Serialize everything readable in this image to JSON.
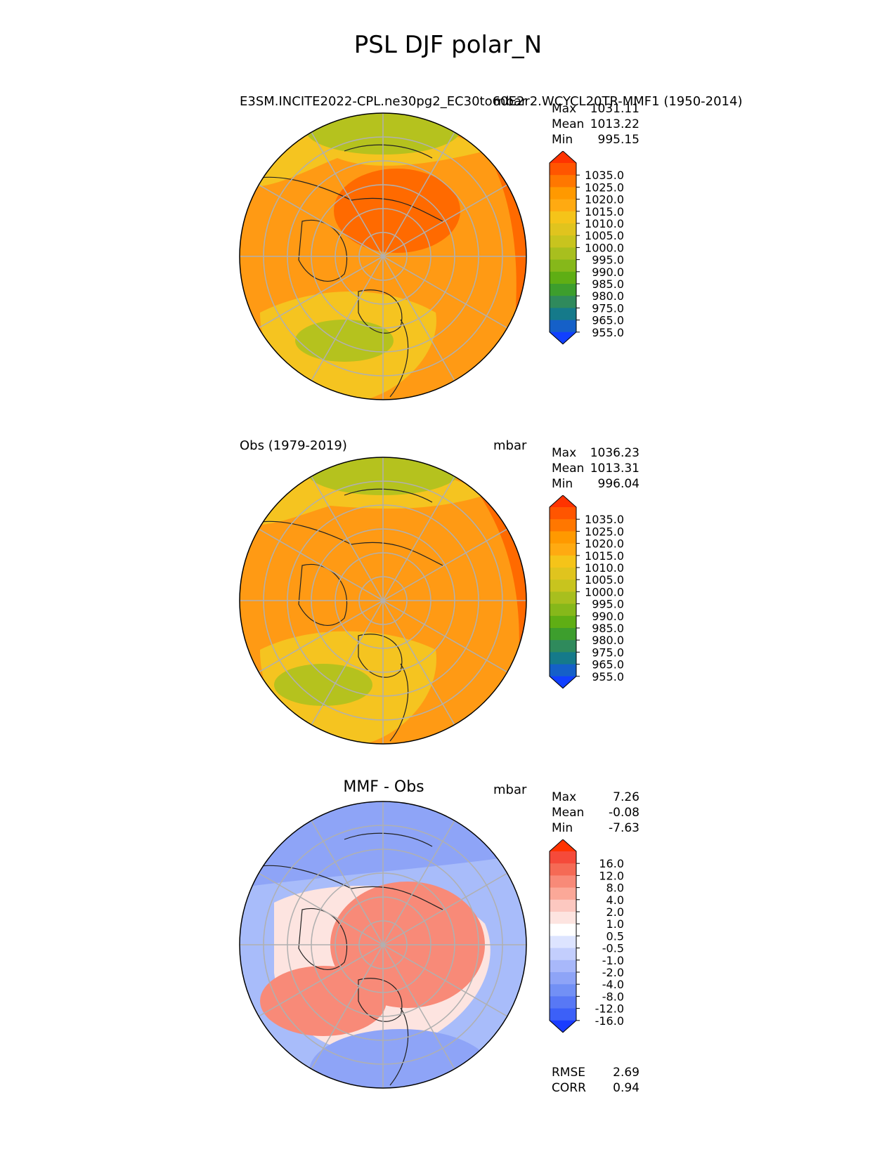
{
  "title": "PSL DJF polar_N",
  "panels": [
    {
      "title_left": "E3SM.INCITE2022-CPL.ne30pg2_EC30to60E2r2.WCYCL20TR-MMF1 (1950-2014)",
      "title_center": "",
      "title_right": "mbar",
      "stats": [
        {
          "label": "Max",
          "value": "1031.11"
        },
        {
          "label": "Mean",
          "value": "1013.22"
        },
        {
          "label": "Min",
          "value": "995.15"
        }
      ],
      "colorbar": {
        "labels": [
          "1035.0",
          "1025.0",
          "1020.0",
          "1015.0",
          "1010.0",
          "1005.0",
          "1000.0",
          "995.0",
          "990.0",
          "985.0",
          "980.0",
          "975.0",
          "965.0",
          "955.0"
        ],
        "colors": [
          "#ff3300",
          "#ff5500",
          "#ff7700",
          "#ff9900",
          "#ffaa11",
          "#f5c419",
          "#e0c41e",
          "#c8c41e",
          "#a8bf1e",
          "#86b81a",
          "#5fae14",
          "#3d9e2d",
          "#2f8a5c",
          "#157a8a",
          "#1560c8",
          "#1140ff"
        ]
      },
      "map": {
        "ocean": "#ff9a14",
        "warm": "#ff6a00",
        "mid": "#f5c420",
        "cool": "#b5c21e"
      }
    },
    {
      "title_left": "Obs (1979-2019)",
      "title_center": "",
      "title_right": "mbar",
      "stats": [
        {
          "label": "Max",
          "value": "1036.23"
        },
        {
          "label": "Mean",
          "value": "1013.31"
        },
        {
          "label": "Min",
          "value": "996.04"
        }
      ],
      "colorbar": {
        "labels": [
          "1035.0",
          "1025.0",
          "1020.0",
          "1015.0",
          "1010.0",
          "1005.0",
          "1000.0",
          "995.0",
          "990.0",
          "985.0",
          "980.0",
          "975.0",
          "965.0",
          "955.0"
        ],
        "colors": [
          "#ff3300",
          "#ff5500",
          "#ff7700",
          "#ff9900",
          "#ffaa11",
          "#f5c419",
          "#e0c41e",
          "#c8c41e",
          "#a8bf1e",
          "#86b81a",
          "#5fae14",
          "#3d9e2d",
          "#2f8a5c",
          "#157a8a",
          "#1560c8",
          "#1140ff"
        ]
      },
      "map": {
        "ocean": "#ff9a14",
        "warm": "#ff6a00",
        "mid": "#f5c420",
        "cool": "#b5c21e"
      }
    },
    {
      "title_left": "",
      "title_center": "MMF - Obs",
      "title_right": "mbar",
      "stats": [
        {
          "label": "Max",
          "value": "7.26"
        },
        {
          "label": "Mean",
          "value": "-0.08"
        },
        {
          "label": "Min",
          "value": "-7.63"
        }
      ],
      "colorbar": {
        "labels": [
          "16.0",
          "12.0",
          "8.0",
          "4.0",
          "2.0",
          "1.0",
          "0.5",
          "-0.5",
          "-1.0",
          "-2.0",
          "-4.0",
          "-8.0",
          "-12.0",
          "-16.0"
        ],
        "colors": [
          "#ff3300",
          "#f54a3a",
          "#f56a55",
          "#f88a78",
          "#fba898",
          "#fcc8c0",
          "#fde4e0",
          "#ffffff",
          "#dde4ff",
          "#c3cefd",
          "#a8b8fa",
          "#8ea4f7",
          "#7290f5",
          "#5878f5",
          "#3c60f8",
          "#1a3cff"
        ]
      },
      "map": {
        "ocean": "#a8bcfa",
        "warm": "#f88a78",
        "mid": "#fde4e0",
        "cool": "#8ea4f7"
      }
    }
  ],
  "footer_stats": [
    {
      "label": "RMSE",
      "value": "2.69"
    },
    {
      "label": "CORR",
      "value": "0.94"
    }
  ]
}
